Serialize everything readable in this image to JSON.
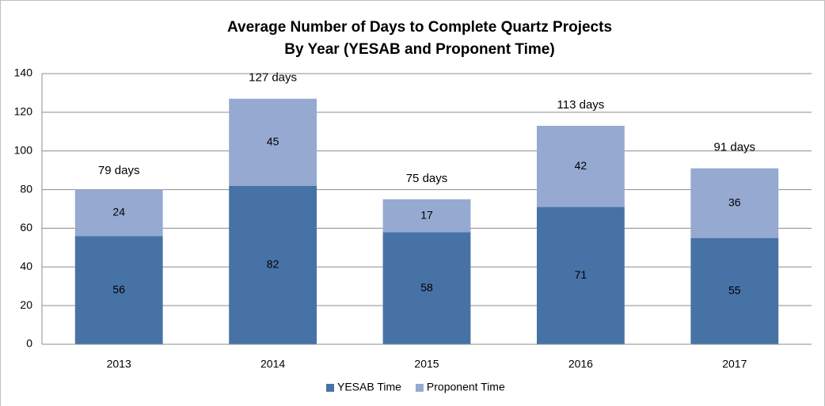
{
  "chart_data": {
    "type": "stacked_bar",
    "title": "Average Number of Days to Complete Quartz Projects",
    "subtitle": "By Year (YESAB and Proponent Time)",
    "categories": [
      "2013",
      "2014",
      "2015",
      "2016",
      "2017"
    ],
    "series": [
      {
        "name": "YESAB Time",
        "color": "#4672a6",
        "values": [
          56,
          82,
          58,
          71,
          55
        ]
      },
      {
        "name": "Proponent Time",
        "color": "#95a9d1",
        "values": [
          24,
          45,
          17,
          42,
          36
        ]
      }
    ],
    "totals": [
      79,
      127,
      75,
      113,
      91
    ],
    "total_labels": [
      "79 days",
      "127 days",
      "75 days",
      "113 days",
      "91 days"
    ],
    "ylim": [
      0,
      140
    ],
    "yticks": [
      0,
      20,
      40,
      60,
      80,
      100,
      120,
      140
    ],
    "grid": true,
    "legend": "bottom"
  }
}
